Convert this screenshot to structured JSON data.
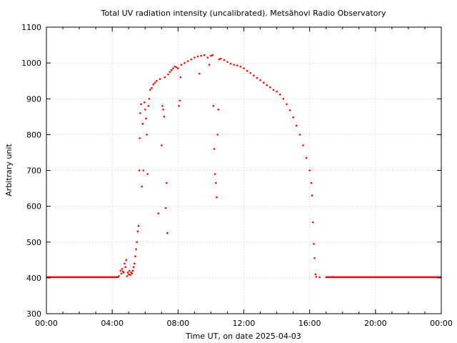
{
  "chart_data": {
    "type": "scatter",
    "title": "Total UV radiation intensity (uncalibrated). Metsähovi Radio Observatory",
    "xlabel": "Time UT, on date 2025-04-03",
    "ylabel": "Arbitrary unit",
    "xlim": [
      0,
      24
    ],
    "ylim": [
      300,
      1100
    ],
    "x_ticks": [
      0,
      4,
      8,
      12,
      16,
      20,
      24
    ],
    "x_tick_labels": [
      "00:00",
      "04:00",
      "08:00",
      "12:00",
      "16:00",
      "20:00",
      "00:00"
    ],
    "y_ticks": [
      300,
      400,
      500,
      600,
      700,
      800,
      900,
      1000,
      1100
    ],
    "y_tick_labels": [
      "300",
      "400",
      "500",
      "600",
      "700",
      "800",
      "900",
      "1000",
      "1100"
    ],
    "grid": true,
    "marker_color": "#ff0000",
    "series": [
      {
        "points": [
          [
            4.4,
            405
          ],
          [
            4.5,
            420
          ],
          [
            4.55,
            412
          ],
          [
            4.6,
            425
          ],
          [
            4.65,
            418
          ],
          [
            4.7,
            415
          ],
          [
            4.75,
            440
          ],
          [
            4.8,
            430
          ],
          [
            4.85,
            450
          ],
          [
            4.9,
            405
          ],
          [
            4.95,
            415
          ],
          [
            5.0,
            410
          ],
          [
            5.05,
            420
          ],
          [
            5.1,
            408
          ],
          [
            5.15,
            415
          ],
          [
            5.2,
            412
          ],
          [
            5.25,
            420
          ],
          [
            5.3,
            430
          ],
          [
            5.35,
            440
          ],
          [
            5.4,
            460
          ],
          [
            5.45,
            480
          ],
          [
            5.5,
            500
          ],
          [
            5.55,
            530
          ],
          [
            5.6,
            545
          ],
          [
            5.65,
            700
          ],
          [
            5.67,
            790
          ],
          [
            5.7,
            860
          ],
          [
            5.75,
            885
          ],
          [
            5.8,
            655
          ],
          [
            5.85,
            830
          ],
          [
            5.9,
            700
          ],
          [
            5.95,
            890
          ],
          [
            6.0,
            870
          ],
          [
            6.05,
            845
          ],
          [
            6.1,
            800
          ],
          [
            6.15,
            690
          ],
          [
            6.2,
            880
          ],
          [
            6.25,
            900
          ],
          [
            6.3,
            925
          ],
          [
            6.4,
            930
          ],
          [
            6.5,
            940
          ],
          [
            6.6,
            945
          ],
          [
            6.7,
            950
          ],
          [
            6.8,
            580
          ],
          [
            6.9,
            955
          ],
          [
            7.0,
            770
          ],
          [
            7.05,
            880
          ],
          [
            7.1,
            870
          ],
          [
            7.15,
            850
          ],
          [
            7.2,
            960
          ],
          [
            7.25,
            595
          ],
          [
            7.3,
            665
          ],
          [
            7.35,
            525
          ],
          [
            7.4,
            968
          ],
          [
            7.5,
            975
          ],
          [
            7.6,
            980
          ],
          [
            7.7,
            985
          ],
          [
            7.8,
            990
          ],
          [
            7.9,
            988
          ],
          [
            8.0,
            985
          ],
          [
            8.05,
            880
          ],
          [
            8.1,
            895
          ],
          [
            8.15,
            960
          ],
          [
            8.2,
            995
          ],
          [
            8.4,
            1000
          ],
          [
            8.6,
            1005
          ],
          [
            8.8,
            1010
          ],
          [
            9.0,
            1015
          ],
          [
            9.2,
            1018
          ],
          [
            9.3,
            970
          ],
          [
            9.4,
            1020
          ],
          [
            9.6,
            1022
          ],
          [
            9.8,
            1015
          ],
          [
            9.9,
            995
          ],
          [
            10.0,
            1020
          ],
          [
            10.1,
            1022
          ],
          [
            10.15,
            880
          ],
          [
            10.2,
            760
          ],
          [
            10.25,
            690
          ],
          [
            10.3,
            665
          ],
          [
            10.35,
            625
          ],
          [
            10.4,
            800
          ],
          [
            10.45,
            870
          ],
          [
            10.5,
            1010
          ],
          [
            10.6,
            1012
          ],
          [
            10.8,
            1008
          ],
          [
            11.0,
            1003
          ],
          [
            11.2,
            998
          ],
          [
            11.4,
            995
          ],
          [
            11.6,
            993
          ],
          [
            11.8,
            990
          ],
          [
            12.0,
            985
          ],
          [
            12.2,
            978
          ],
          [
            12.4,
            972
          ],
          [
            12.6,
            965
          ],
          [
            12.8,
            958
          ],
          [
            13.0,
            952
          ],
          [
            13.2,
            945
          ],
          [
            13.4,
            938
          ],
          [
            13.6,
            932
          ],
          [
            13.8,
            925
          ],
          [
            14.0,
            920
          ],
          [
            14.2,
            912
          ],
          [
            14.4,
            900
          ],
          [
            14.6,
            885
          ],
          [
            14.8,
            868
          ],
          [
            15.0,
            848
          ],
          [
            15.2,
            825
          ],
          [
            15.4,
            800
          ],
          [
            15.6,
            770
          ],
          [
            15.8,
            735
          ],
          [
            16.0,
            700
          ],
          [
            16.1,
            665
          ],
          [
            16.15,
            630
          ],
          [
            16.2,
            555
          ],
          [
            16.25,
            495
          ],
          [
            16.3,
            455
          ],
          [
            16.35,
            410
          ],
          [
            16.4,
            403
          ],
          [
            16.6,
            402
          ],
          [
            17.0,
            402
          ],
          [
            17.4,
            403
          ]
        ]
      }
    ],
    "baseline": {
      "value": 402,
      "segments": [
        [
          0,
          4.4
        ],
        [
          17.0,
          24
        ]
      ]
    }
  }
}
